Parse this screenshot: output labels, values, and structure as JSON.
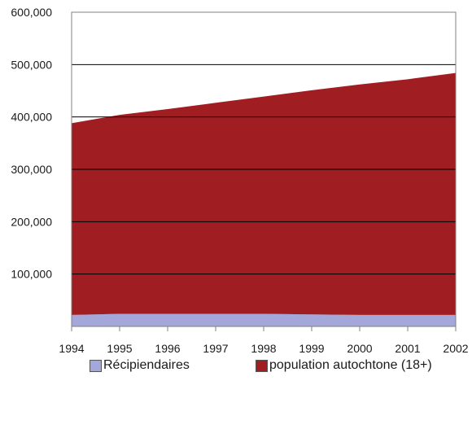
{
  "chart_data": {
    "type": "area",
    "stacked": true,
    "categories": [
      "1994",
      "1995",
      "1996",
      "1997",
      "1998",
      "1999",
      "2000",
      "2001",
      "2002"
    ],
    "series": [
      {
        "name": "Récipiendaires",
        "color": "#a3a7d9",
        "values": [
          22000,
          24000,
          24000,
          24000,
          24000,
          23000,
          22000,
          22000,
          22000
        ]
      },
      {
        "name": "population autochtone (18+)",
        "color": "#a01d22",
        "values": [
          366000,
          380000,
          391000,
          403000,
          415000,
          428000,
          440000,
          450000,
          462000
        ]
      }
    ],
    "y_ticks": [
      "100,000",
      "200,000",
      "300,000",
      "400,000",
      "500,000",
      "600,000"
    ],
    "ylim": [
      0,
      600000
    ],
    "grid": "horizontal",
    "legend_position": "bottom"
  }
}
